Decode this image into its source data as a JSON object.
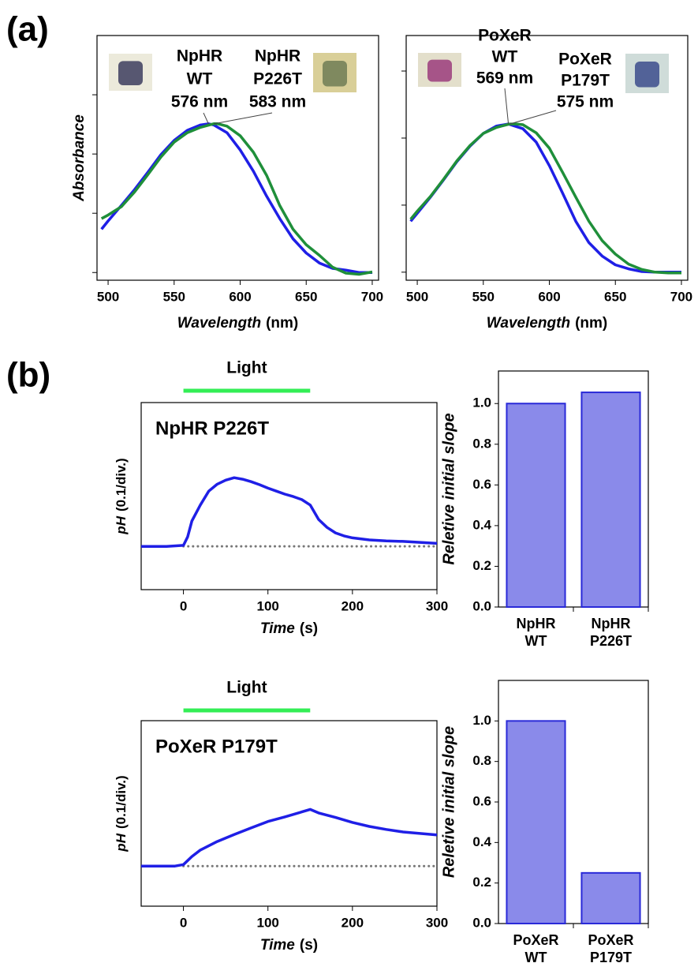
{
  "panel_labels": [
    "(a)",
    "(b)"
  ],
  "chart_data": [
    {
      "type": "line",
      "ylabel": "Absorbance",
      "xlabel": [
        "Wavelength",
        "(nm)"
      ],
      "xlim": [
        491.6,
        704.8
      ],
      "xticks": [
        500,
        550,
        600,
        650,
        700
      ],
      "ylim": [
        -0.013,
        0.4
      ],
      "yticks": [
        0,
        0.1,
        0.2,
        0.3
      ],
      "series": [
        {
          "color": "#1f1fe6",
          "x": [
            495,
            500,
            510,
            520,
            530,
            540,
            550,
            560,
            570,
            576,
            580,
            590,
            600,
            610,
            620,
            630,
            640,
            650,
            660,
            670,
            680,
            690,
            700
          ],
          "values": [
            0.073,
            0.087,
            0.113,
            0.14,
            0.169,
            0.199,
            0.223,
            0.24,
            0.249,
            0.251,
            0.249,
            0.236,
            0.207,
            0.171,
            0.129,
            0.091,
            0.057,
            0.033,
            0.016,
            0.007,
            0.004,
            0,
            0
          ]
        },
        {
          "color": "#1f8f3a",
          "x": [
            495,
            500,
            510,
            520,
            530,
            540,
            550,
            560,
            570,
            580,
            583,
            590,
            600,
            610,
            620,
            630,
            640,
            650,
            660,
            670,
            680,
            690,
            700
          ],
          "values": [
            0.091,
            0.097,
            0.111,
            0.136,
            0.165,
            0.195,
            0.22,
            0.236,
            0.245,
            0.251,
            0.251,
            0.247,
            0.231,
            0.203,
            0.164,
            0.113,
            0.073,
            0.047,
            0.029,
            0.009,
            -0.001,
            -0.003,
            0.001
          ]
        }
      ],
      "annotations": [
        {
          "lines": [
            "NpHR",
            "WT",
            "576 nm"
          ]
        },
        {
          "lines": [
            "NpHR",
            "P226T",
            "583 nm"
          ]
        }
      ]
    },
    {
      "type": "line",
      "xlabel": [
        "Wavelength",
        "(nm)"
      ],
      "xlim": [
        491.6,
        704.8
      ],
      "xticks": [
        500,
        550,
        600,
        650,
        700
      ],
      "ylim": [
        -0.012,
        0.353
      ],
      "yticks": [
        0,
        0.1,
        0.2,
        0.3
      ],
      "series": [
        {
          "color": "#1f1fe6",
          "x": [
            495,
            500,
            510,
            520,
            530,
            540,
            550,
            560,
            569,
            580,
            590,
            600,
            610,
            620,
            630,
            640,
            650,
            660,
            670,
            680,
            690,
            700
          ],
          "values": [
            0.076,
            0.088,
            0.112,
            0.138,
            0.165,
            0.188,
            0.207,
            0.218,
            0.221,
            0.214,
            0.194,
            0.159,
            0.118,
            0.076,
            0.044,
            0.024,
            0.011,
            0.005,
            0.001,
            0,
            0,
            0
          ]
        },
        {
          "color": "#1f8f3a",
          "x": [
            495,
            500,
            510,
            520,
            530,
            540,
            550,
            560,
            570,
            575,
            580,
            590,
            600,
            610,
            620,
            630,
            640,
            650,
            660,
            670,
            680,
            690,
            700
          ],
          "values": [
            0.079,
            0.091,
            0.113,
            0.139,
            0.166,
            0.189,
            0.207,
            0.216,
            0.221,
            0.221,
            0.22,
            0.208,
            0.185,
            0.149,
            0.112,
            0.076,
            0.047,
            0.027,
            0.012,
            0.004,
            0,
            -0.001,
            -0.001
          ]
        }
      ],
      "annotations": [
        {
          "lines": [
            "PoXeR",
            "WT",
            "569 nm"
          ]
        },
        {
          "lines": [
            "PoXeR",
            "P179T",
            "575 nm"
          ]
        }
      ]
    },
    {
      "type": "line",
      "title": "NpHR P226T",
      "ylabel": [
        "pH",
        "(0.1/div.)"
      ],
      "xlabel": [
        "Time",
        "(s)"
      ],
      "xlim": [
        -50,
        300
      ],
      "xticks": [
        0,
        100,
        200,
        300
      ],
      "ylim": [
        -0.087,
        0.289
      ],
      "light": {
        "label": "Light",
        "start": 0,
        "end": 150,
        "color": "#33ee55"
      },
      "series": [
        {
          "color": "#1f1fe6",
          "x": [
            -50,
            -20,
            0,
            5,
            10,
            20,
            30,
            40,
            50,
            60,
            70,
            80,
            90,
            100,
            110,
            120,
            130,
            140,
            150,
            160,
            170,
            180,
            190,
            200,
            220,
            240,
            260,
            280,
            300
          ],
          "values": [
            0,
            0,
            0.002,
            0.019,
            0.051,
            0.083,
            0.111,
            0.125,
            0.133,
            0.138,
            0.135,
            0.13,
            0.124,
            0.117,
            0.111,
            0.105,
            0.1,
            0.094,
            0.083,
            0.054,
            0.038,
            0.027,
            0.021,
            0.017,
            0.013,
            0.011,
            0.01,
            0.008,
            0.006
          ]
        }
      ]
    },
    {
      "type": "bar",
      "ylabel": "Reletive initial slope",
      "categories": [
        [
          "NpHR",
          "WT"
        ],
        [
          "NpHR",
          "P226T"
        ]
      ],
      "values": [
        1.0,
        1.055
      ],
      "color": "#2a2ad8",
      "ylim": [
        0,
        1.16
      ],
      "yticks": [
        {
          "value": 0,
          "label": "0.0"
        },
        0.2,
        0.4,
        0.6,
        0.8,
        {
          "value": 1,
          "label": "1.0"
        }
      ]
    },
    {
      "type": "line",
      "title": "PoXeR P179T",
      "ylabel": [
        "pH",
        "(0.1/div.)"
      ],
      "xlabel": [
        "Time",
        "(s)"
      ],
      "xlim": [
        -50,
        300
      ],
      "xticks": [
        0,
        100,
        200,
        300
      ],
      "ylim": [
        -0.08,
        0.29
      ],
      "light": {
        "label": "Light",
        "start": 0,
        "end": 150,
        "color": "#33ee55"
      },
      "series": [
        {
          "color": "#1f1fe6",
          "x": [
            -50,
            -10,
            0,
            10,
            20,
            40,
            60,
            80,
            100,
            120,
            140,
            150,
            160,
            180,
            200,
            220,
            240,
            260,
            280,
            300
          ],
          "values": [
            0,
            0,
            0.003,
            0.019,
            0.032,
            0.049,
            0.063,
            0.076,
            0.089,
            0.098,
            0.108,
            0.113,
            0.106,
            0.097,
            0.087,
            0.079,
            0.073,
            0.068,
            0.065,
            0.062
          ]
        }
      ]
    },
    {
      "type": "bar",
      "ylabel": "Reletive initial slope",
      "categories": [
        [
          "PoXeR",
          "WT"
        ],
        [
          "PoXeR",
          "P179T"
        ]
      ],
      "values": [
        1.0,
        0.25
      ],
      "color": "#2a2ad8",
      "ylim": [
        0,
        1.2
      ],
      "yticks": [
        {
          "value": 0,
          "label": "0.0"
        },
        0.2,
        0.4,
        0.6,
        0.8,
        {
          "value": 1,
          "label": "1.0"
        }
      ]
    }
  ]
}
